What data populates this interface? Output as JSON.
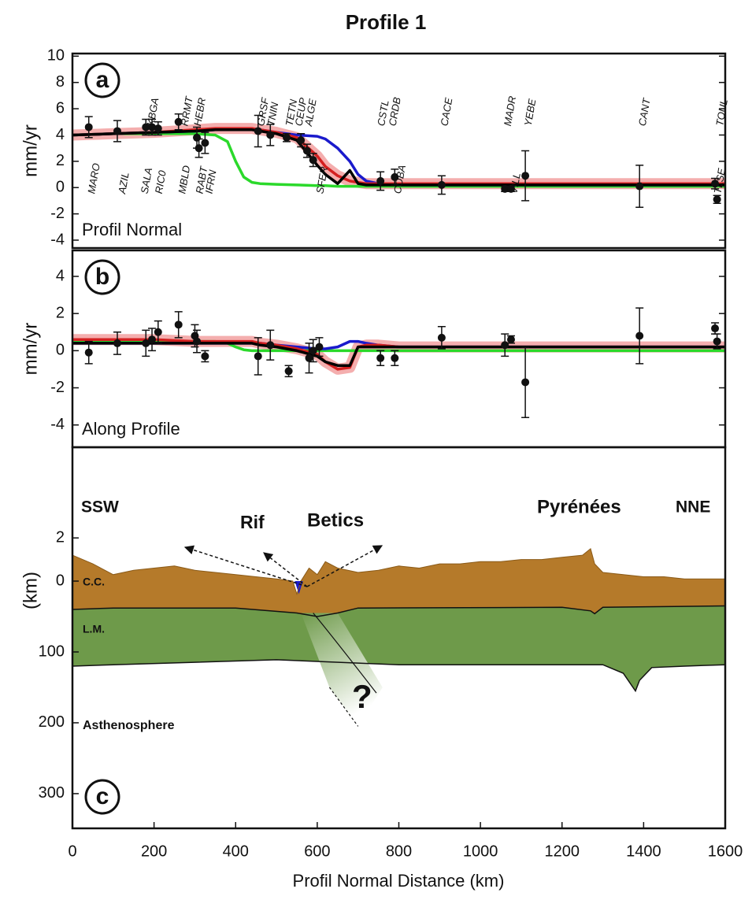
{
  "chart_data": {
    "type": "profile",
    "title": "Profile 1",
    "xlabel": "Profil Normal Distance (km)",
    "xlim": [
      0,
      1600
    ],
    "xticks": [
      0,
      200,
      400,
      600,
      800,
      1000,
      1200,
      1400,
      1600
    ],
    "panels": [
      {
        "letter": "a",
        "ylabel": "mm/yr",
        "label": "Profil Normal",
        "ylim": [
          -4.6,
          10.2
        ],
        "yticks": [
          -4,
          -2,
          0,
          2,
          4,
          6,
          8,
          10
        ],
        "model_x": [
          0,
          100,
          200,
          300,
          350,
          380,
          400,
          420,
          440,
          460,
          500,
          550,
          600,
          620,
          650,
          680,
          700,
          720,
          750,
          800,
          900,
          1200,
          1600
        ],
        "series": [
          {
            "color": "#2bd92b",
            "values": [
              4.0,
              4.1,
              4.1,
              4.1,
              4.0,
              3.5,
              2.0,
              0.8,
              0.4,
              0.3,
              0.25,
              0.2,
              0.15,
              0.15,
              0.1,
              0.1,
              0.1,
              0.1,
              0.1,
              0.1,
              0.1,
              0.1,
              0.1
            ]
          },
          {
            "color": "#1a1acc",
            "values": [
              4.0,
              4.1,
              4.2,
              4.3,
              4.4,
              4.4,
              4.4,
              4.4,
              4.4,
              4.4,
              4.2,
              4.0,
              3.9,
              3.7,
              3.0,
              2.0,
              1.0,
              0.5,
              0.3,
              0.2,
              0.2,
              0.2,
              0.2
            ]
          },
          {
            "color": "#d42020",
            "band_color": "#f2a0a0",
            "values": [
              4.0,
              4.1,
              4.2,
              4.4,
              4.5,
              4.5,
              4.5,
              4.5,
              4.5,
              4.4,
              4.2,
              3.8,
              2.4,
              1.6,
              0.9,
              0.5,
              0.4,
              0.3,
              0.3,
              0.3,
              0.3,
              0.3,
              0.3
            ]
          },
          {
            "color": "#000000",
            "values": [
              4.0,
              4.1,
              4.2,
              4.3,
              4.4,
              4.4,
              4.4,
              4.4,
              4.4,
              4.3,
              4.1,
              3.6,
              1.7,
              1.0,
              0.3,
              1.3,
              0.3,
              0.2,
              0.2,
              0.2,
              0.2,
              0.2,
              0.2
            ]
          }
        ],
        "points": {
          "x": [
            40,
            110,
            180,
            195,
            210,
            260,
            305,
            310,
            325,
            455,
            485,
            525,
            560,
            575,
            590,
            755,
            790,
            905,
            1060,
            1075,
            1110,
            1390,
            1575,
            1580
          ],
          "values": [
            4.6,
            4.3,
            4.6,
            4.6,
            4.5,
            5.0,
            3.8,
            3.0,
            3.4,
            4.3,
            4.0,
            3.8,
            3.6,
            2.8,
            2.1,
            0.5,
            0.8,
            0.2,
            -0.1,
            -0.1,
            0.9,
            0.1,
            0.3,
            -0.9
          ],
          "errors": [
            0.8,
            0.8,
            0.6,
            0.6,
            0.5,
            0.6,
            0.8,
            0.7,
            0.8,
            1.2,
            0.8,
            0.3,
            0.5,
            0.5,
            0.5,
            0.7,
            0.6,
            0.7,
            0.2,
            0.2,
            1.9,
            1.6,
            0.4,
            0.3
          ]
        },
        "stations_top": [
          {
            "name": "KBGA",
            "x": 185
          },
          {
            "name": "RRMT",
            "x": 268
          },
          {
            "name": "HEBR",
            "x": 300
          },
          {
            "name": "GRSF",
            "x": 455
          },
          {
            "name": "TNIN",
            "x": 480
          },
          {
            "name": "TETN",
            "x": 525
          },
          {
            "name": "CEUP",
            "x": 548
          },
          {
            "name": "ALGE",
            "x": 572
          },
          {
            "name": "CSTL",
            "x": 750
          },
          {
            "name": "CRDB",
            "x": 778
          },
          {
            "name": "CACE",
            "x": 905
          },
          {
            "name": "MADR",
            "x": 1060
          },
          {
            "name": "YEBE",
            "x": 1110
          },
          {
            "name": "CANT",
            "x": 1390
          },
          {
            "name": "TOUL",
            "x": 1580
          }
        ],
        "stations_bottom": [
          {
            "name": "MARO",
            "x": 40
          },
          {
            "name": "AZIL",
            "x": 115
          },
          {
            "name": "SALA",
            "x": 170
          },
          {
            "name": "RIC0",
            "x": 205
          },
          {
            "name": "MBLD",
            "x": 262
          },
          {
            "name": "RABT",
            "x": 305
          },
          {
            "name": "IFRN",
            "x": 328
          },
          {
            "name": "SFER",
            "x": 600
          },
          {
            "name": "COBA",
            "x": 790
          },
          {
            "name": "VILL",
            "x": 1075
          },
          {
            "name": "TLSE",
            "x": 1575
          }
        ]
      },
      {
        "letter": "b",
        "ylabel": "mm/yr",
        "label": "Along Profile",
        "ylim": [
          -5.2,
          5.4
        ],
        "yticks": [
          -4,
          -2,
          0,
          2,
          4
        ],
        "model_x": [
          0,
          100,
          200,
          300,
          350,
          380,
          400,
          420,
          440,
          460,
          500,
          550,
          600,
          620,
          650,
          680,
          700,
          720,
          750,
          800,
          900,
          1200,
          1600
        ],
        "series": [
          {
            "color": "#2bd92b",
            "values": [
              0.5,
              0.5,
              0.5,
              0.5,
              0.5,
              0.4,
              0.2,
              0.05,
              0,
              0,
              0,
              0,
              0,
              0,
              0,
              0,
              0,
              0,
              0,
              0,
              0,
              0,
              0
            ]
          },
          {
            "color": "#1a1acc",
            "values": [
              0.4,
              0.4,
              0.4,
              0.4,
              0.4,
              0.4,
              0.4,
              0.4,
              0.4,
              0.4,
              0.3,
              0.2,
              0.1,
              0.1,
              0.2,
              0.5,
              0.5,
              0.4,
              0.3,
              0.2,
              0.2,
              0.2,
              0.2
            ]
          },
          {
            "color": "#d42020",
            "band_color": "#f2a0a0",
            "values": [
              0.6,
              0.6,
              0.6,
              0.5,
              0.5,
              0.5,
              0.5,
              0.5,
              0.5,
              0.4,
              0.3,
              0.1,
              -0.2,
              -0.6,
              -1.0,
              -0.9,
              0.2,
              0.3,
              0.3,
              0.2,
              0.2,
              0.2,
              0.2
            ]
          },
          {
            "color": "#000000",
            "values": [
              0.4,
              0.4,
              0.4,
              0.4,
              0.4,
              0.4,
              0.4,
              0.4,
              0.4,
              0.3,
              0.2,
              0.0,
              -0.3,
              -0.6,
              -0.8,
              -0.8,
              0.2,
              0.2,
              0.2,
              0.2,
              0.2,
              0.2,
              0.2
            ]
          }
        ],
        "points": {
          "x": [
            40,
            110,
            180,
            195,
            210,
            260,
            300,
            305,
            325,
            455,
            485,
            530,
            580,
            590,
            605,
            755,
            790,
            905,
            1060,
            1075,
            1110,
            1390,
            1575,
            1580
          ],
          "values": [
            -0.1,
            0.4,
            0.4,
            0.6,
            1.0,
            1.4,
            0.8,
            0.5,
            -0.3,
            -0.3,
            0.3,
            -1.1,
            -0.4,
            0.0,
            0.2,
            -0.4,
            -0.4,
            0.7,
            0.3,
            0.6,
            -1.7,
            0.8,
            1.2,
            0.5
          ],
          "errors": [
            0.6,
            0.6,
            0.7,
            0.6,
            0.6,
            0.7,
            0.6,
            0.6,
            0.3,
            1.0,
            0.8,
            0.3,
            0.8,
            0.6,
            0.5,
            0.4,
            0.4,
            0.6,
            0.6,
            0.2,
            1.9,
            1.5,
            0.3,
            0.4
          ]
        }
      },
      {
        "letter": "c",
        "ylabel": "(km)",
        "topo_ylim": [
          0,
          6.2
        ],
        "topo_yticks": [
          0,
          2
        ],
        "depth_ylim": [
          0,
          349
        ],
        "depth_yticks": [
          100,
          200,
          300
        ],
        "crust_color": "#b57a2a",
        "mantle_color": "#6e9a4a",
        "basin_color": "#1a1acc",
        "topography": {
          "x": [
            0,
            50,
            100,
            150,
            200,
            250,
            300,
            350,
            400,
            450,
            500,
            540,
            550,
            560,
            580,
            600,
            620,
            650,
            700,
            750,
            800,
            850,
            900,
            950,
            1000,
            1050,
            1100,
            1150,
            1200,
            1250,
            1270,
            1280,
            1300,
            1350,
            1400,
            1450,
            1500,
            1550,
            1600
          ],
          "values": [
            1.2,
            0.8,
            0.3,
            0.5,
            0.6,
            0.7,
            0.5,
            0.4,
            0.3,
            0.2,
            0.1,
            0.0,
            -0.6,
            0.0,
            0.6,
            0.3,
            0.9,
            0.6,
            0.4,
            0.5,
            0.7,
            0.6,
            0.8,
            0.8,
            0.9,
            0.9,
            1.0,
            1.0,
            1.1,
            1.2,
            1.5,
            0.8,
            0.4,
            0.3,
            0.2,
            0.2,
            0.1,
            0.1,
            0.1
          ]
        },
        "moho": {
          "x": [
            0,
            100,
            400,
            550,
            600,
            650,
            700,
            1200,
            1270,
            1280,
            1300,
            1600
          ],
          "values": [
            40,
            38,
            38,
            45,
            50,
            45,
            38,
            37,
            42,
            46,
            37,
            35
          ]
        },
        "lab": {
          "x": [
            0,
            100,
            500,
            800,
            1300,
            1350,
            1380,
            1390,
            1420,
            1500,
            1600
          ],
          "values": [
            120,
            118,
            111,
            118,
            118,
            130,
            155,
            140,
            122,
            120,
            118
          ]
        },
        "labels": [
          "SSW",
          "NNE",
          "Rif",
          "Betics",
          "Pyrénées",
          "C.C.",
          "L.M.",
          "Asthenosphere",
          "?"
        ]
      }
    ]
  }
}
